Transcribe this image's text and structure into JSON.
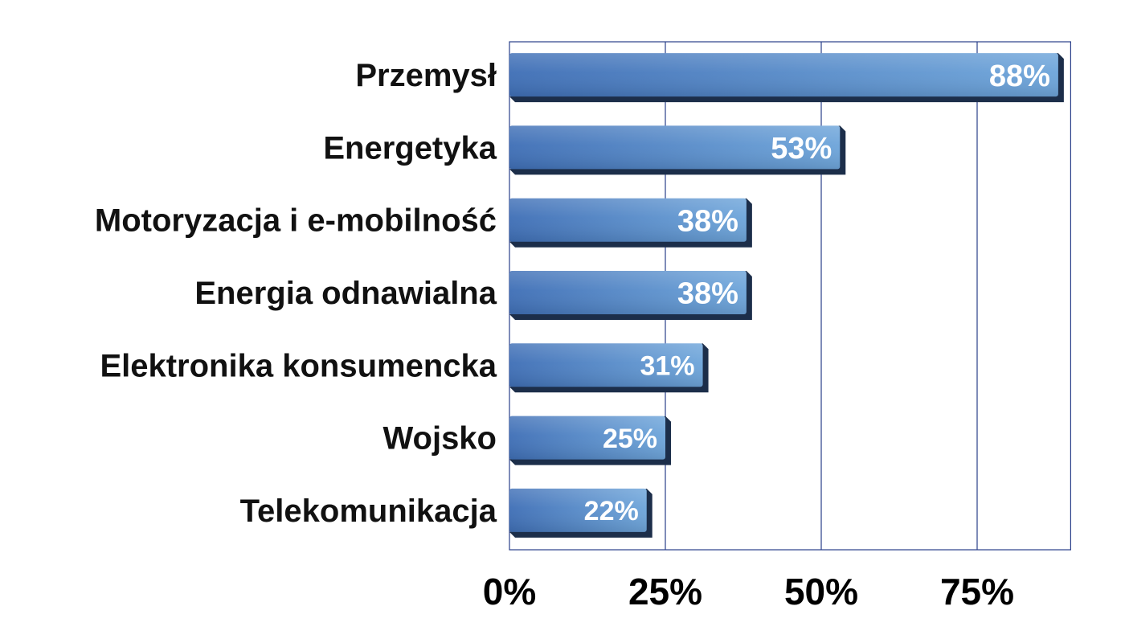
{
  "chart_data": {
    "type": "bar",
    "orientation": "horizontal",
    "categories": [
      "Przemysł",
      "Energetyka",
      "Motoryzacja i e-mobilność",
      "Energia odnawialna",
      "Elektronika konsumencka",
      "Wojsko",
      "Telekomunikacja"
    ],
    "values": [
      88,
      53,
      38,
      38,
      31,
      25,
      22
    ],
    "value_labels": [
      "88%",
      "53%",
      "38%",
      "38%",
      "31%",
      "25%",
      "22%"
    ],
    "xlim": [
      0,
      90
    ],
    "xticks": [
      0,
      25,
      50,
      75
    ],
    "xtick_labels": [
      "0%",
      "25%",
      "50%",
      "75%"
    ],
    "grid": "vertical",
    "legend": "none"
  },
  "colors": {
    "bar_left": "#3f6fb6",
    "bar_right": "#6ea5da",
    "bar_shadow": "#1c2e4a",
    "grid_line": "#2a3f8a",
    "plot_border": "#2a3f8a"
  }
}
